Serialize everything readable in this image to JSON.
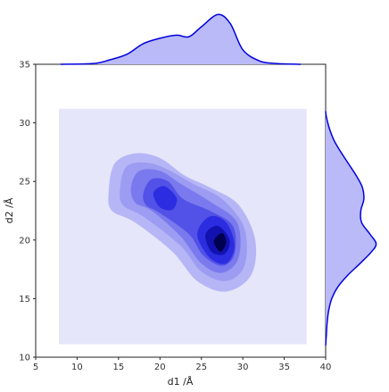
{
  "chart_data": {
    "type": "kde-joint",
    "xlabel": "d1 /Å",
    "ylabel": "d2 /Å",
    "xlim": [
      5,
      40
    ],
    "ylim": [
      10,
      35
    ],
    "xticks": [
      5,
      10,
      15,
      20,
      25,
      30,
      35,
      40
    ],
    "yticks": [
      10,
      15,
      20,
      25,
      30,
      35
    ],
    "background": {
      "color": "#e6e6fa",
      "x": [
        7.8,
        37.7
      ],
      "y": [
        11.1,
        31.2
      ]
    },
    "contours": [
      {
        "color": "#b6b6f6",
        "x": [
          13.8,
          14.5,
          17,
          20,
          23,
          26,
          29.5,
          31.5,
          31,
          28,
          24.5,
          21.5,
          17,
          14.2
        ],
        "y": [
          24,
          26.5,
          27.4,
          27,
          25.5,
          24.5,
          23,
          20,
          17,
          15.6,
          16.5,
          19,
          21.5,
          22.5
        ]
      },
      {
        "color": "#9c9cf2",
        "x": [
          15.2,
          16,
          18.5,
          21,
          24,
          27.5,
          30.2,
          30.2,
          28,
          25,
          22.5,
          18,
          15.5
        ],
        "y": [
          24.5,
          26.3,
          26.6,
          26,
          24.8,
          23.5,
          21,
          17.8,
          16.5,
          17.3,
          19.5,
          22,
          23
        ]
      },
      {
        "color": "#7a7aee",
        "x": [
          16.5,
          17.5,
          20,
          22.5,
          26,
          29.3,
          29.5,
          27.5,
          25,
          22.5,
          19,
          17
        ],
        "y": [
          24.5,
          25.9,
          25.9,
          24.8,
          23.3,
          21.5,
          18.5,
          17.2,
          18,
          20.3,
          22.5,
          23.2
        ]
      },
      {
        "color": "#5252e8",
        "x": [
          18,
          19,
          21,
          22.8,
          26,
          28.8,
          29,
          27.5,
          25.2,
          23.5,
          20,
          18.3
        ],
        "y": [
          24,
          25.2,
          25,
          23.5,
          22.5,
          21.2,
          18.8,
          17.8,
          18.7,
          20.5,
          22.3,
          23
        ]
      },
      {
        "color": "#2c2ce0",
        "x": [
          19.2,
          20.5,
          22,
          21.5,
          20
        ],
        "y": [
          24,
          24.6,
          23.6,
          22.6,
          22.8
        ]
      },
      {
        "color": "#2c2ce0",
        "x": [
          24.5,
          26,
          28,
          29,
          28,
          26
        ],
        "y": [
          20.5,
          22,
          21.5,
          19.5,
          18,
          18.5
        ]
      },
      {
        "color": "#1212b0",
        "x": [
          25.5,
          27,
          28.4,
          27.8,
          26.2
        ],
        "y": [
          20.5,
          21.2,
          20,
          18.8,
          19
        ]
      },
      {
        "color": "#000050",
        "x": [
          26.5,
          27.5,
          28,
          27.3
        ],
        "y": [
          19.9,
          20.6,
          19.8,
          19
        ]
      }
    ],
    "marginal_x": {
      "color": "#0000dd",
      "fill": "#babaf8",
      "lim": [
        0,
        0.07
      ],
      "x": [
        8,
        12,
        14,
        16,
        18,
        20,
        22,
        23.5,
        25,
        27,
        28.5,
        30,
        32,
        34,
        37
      ],
      "values": [
        0,
        0.001,
        0.006,
        0.013,
        0.027,
        0.034,
        0.038,
        0.036,
        0.049,
        0.065,
        0.053,
        0.019,
        0.0045,
        0.001,
        0
      ]
    },
    "marginal_y": {
      "color": "#0000dd",
      "fill": "#babaf8",
      "lim": [
        0,
        0.07
      ],
      "y": [
        11,
        12,
        13,
        14,
        15,
        16,
        17,
        18,
        19,
        19.7,
        20.5,
        21.5,
        22.5,
        23.5,
        24.5,
        25.5,
        26.5,
        27.5,
        28.5,
        29.5,
        30.5,
        31
      ],
      "values": [
        0,
        0.001,
        0.002,
        0.004,
        0.008,
        0.016,
        0.029,
        0.045,
        0.06,
        0.066,
        0.058,
        0.047,
        0.046,
        0.05,
        0.048,
        0.04,
        0.03,
        0.02,
        0.011,
        0.005,
        0.001,
        0
      ]
    }
  }
}
